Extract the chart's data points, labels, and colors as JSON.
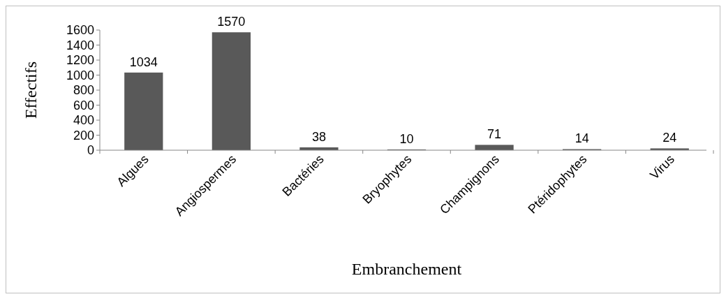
{
  "chart_data": {
    "type": "bar",
    "xlabel": "Embranchement",
    "ylabel": "Effectifs",
    "categories": [
      "Algues",
      "Angiospermes",
      "Bactéries",
      "Bryophytes",
      "Champignons",
      "Ptéridophytes",
      "Virus"
    ],
    "values": [
      1034,
      1570,
      38,
      10,
      71,
      14,
      24
    ],
    "color": "#595959",
    "ylim": [
      0,
      1600
    ],
    "yticks": [
      0,
      200,
      400,
      600,
      800,
      1000,
      1200,
      1400,
      1600
    ],
    "data_labels": true
  }
}
